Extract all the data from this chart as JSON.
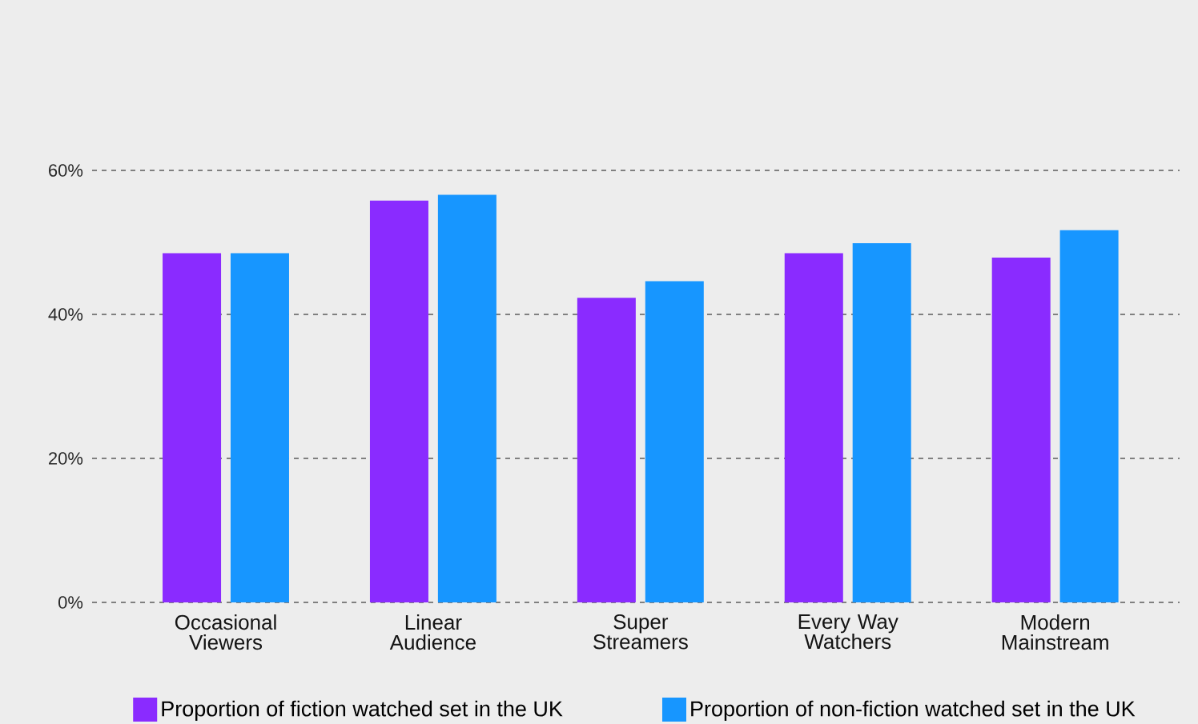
{
  "chart_data": {
    "type": "bar",
    "categories": [
      "Occasional Viewers",
      "Linear Audience",
      "Super Streamers",
      "Every Way Watchers",
      "Modern Mainstream"
    ],
    "series": [
      {
        "name": "Proportion of fiction watched set in the UK",
        "color": "#8a2bff",
        "values": [
          48.5,
          55.8,
          42.3,
          48.5,
          47.9
        ]
      },
      {
        "name": "Proportion of non-fiction watched set in the UK",
        "color": "#1796ff",
        "values": [
          48.5,
          56.6,
          44.6,
          49.9,
          51.7
        ]
      }
    ],
    "ylim": [
      0,
      60
    ],
    "yticks": [
      {
        "value": 0,
        "label": "0%"
      },
      {
        "value": 20,
        "label": "20%"
      },
      {
        "value": 40,
        "label": "40%"
      },
      {
        "value": 60,
        "label": "60%"
      }
    ],
    "grid": "y",
    "legend": "bottom"
  }
}
